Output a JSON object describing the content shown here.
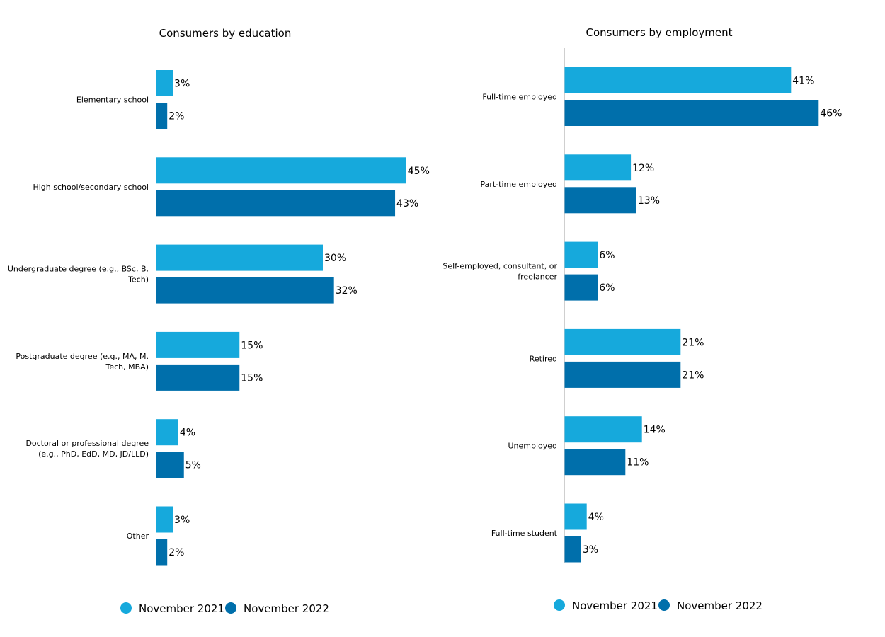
{
  "chart_data": [
    {
      "type": "bar",
      "orientation": "horizontal",
      "title": "Consumers by education",
      "categories": [
        [
          "Elementary school"
        ],
        [
          "High school/secondary school"
        ],
        [
          "Undergraduate degree (e.g., BSc, B.",
          "Tech)"
        ],
        [
          "Postgraduate degree (e.g., MA, M.",
          "Tech, MBA)"
        ],
        [
          "Doctoral or professional degree",
          "(e.g., PhD, EdD, MD, JD/LLD)"
        ],
        [
          "Other"
        ]
      ],
      "series": [
        {
          "name": "November 2021",
          "color": "#16a9dc",
          "values": [
            3,
            45,
            30,
            15,
            4,
            3
          ]
        },
        {
          "name": "November 2022",
          "color": "#006fab",
          "values": [
            2,
            43,
            32,
            15,
            5,
            2
          ]
        }
      ],
      "value_suffix": "%",
      "grid": false,
      "legend_position": "bottom"
    },
    {
      "type": "bar",
      "orientation": "horizontal",
      "title": "Consumers by employment",
      "categories": [
        [
          "Full-time employed"
        ],
        [
          "Part-time employed"
        ],
        [
          "Self-employed, consultant, or",
          "freelancer"
        ],
        [
          "Retired"
        ],
        [
          "Unemployed"
        ],
        [
          "Full-time student"
        ]
      ],
      "series": [
        {
          "name": "November 2021",
          "color": "#16a9dc",
          "values": [
            41,
            12,
            6,
            21,
            14,
            4
          ]
        },
        {
          "name": "November 2022",
          "color": "#006fab",
          "values": [
            46,
            13,
            6,
            21,
            11,
            3
          ]
        }
      ],
      "value_suffix": "%",
      "grid": false,
      "legend_position": "bottom"
    }
  ]
}
